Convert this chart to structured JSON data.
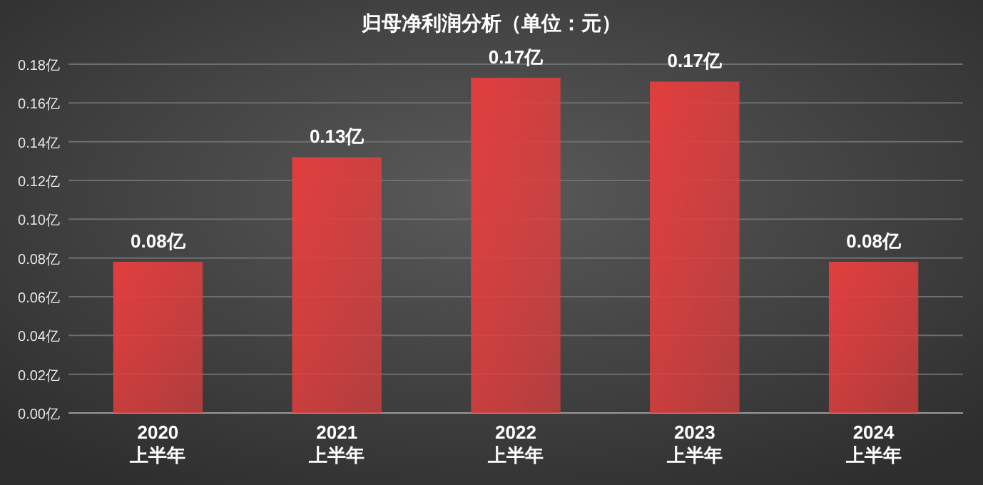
{
  "chart_data": {
    "type": "bar",
    "title": "归母净利润分析（单位：元）",
    "categories": [
      "2020\n上半年",
      "2021\n上半年",
      "2022\n上半年",
      "2023\n上半年",
      "2024\n上半年"
    ],
    "values": [
      0.078,
      0.132,
      0.173,
      0.171,
      0.078
    ],
    "value_labels": [
      "0.08亿",
      "0.13亿",
      "0.17亿",
      "0.17亿",
      "0.08亿"
    ],
    "color": "#e23e3e",
    "ylim": [
      0,
      0.18
    ],
    "yticks": [
      {
        "value": 0,
        "label": "0.00亿"
      },
      {
        "value": 0.02,
        "label": "0.02亿"
      },
      {
        "value": 0.04,
        "label": "0.04亿"
      },
      {
        "value": 0.06,
        "label": "0.06亿"
      },
      {
        "value": 0.08,
        "label": "0.08亿"
      },
      {
        "value": 0.1,
        "label": "0.10亿"
      },
      {
        "value": 0.12,
        "label": "0.12亿"
      },
      {
        "value": 0.14,
        "label": "0.14亿"
      },
      {
        "value": 0.16,
        "label": "0.16亿"
      },
      {
        "value": 0.18,
        "label": "0.18亿"
      }
    ],
    "grid": "y"
  }
}
